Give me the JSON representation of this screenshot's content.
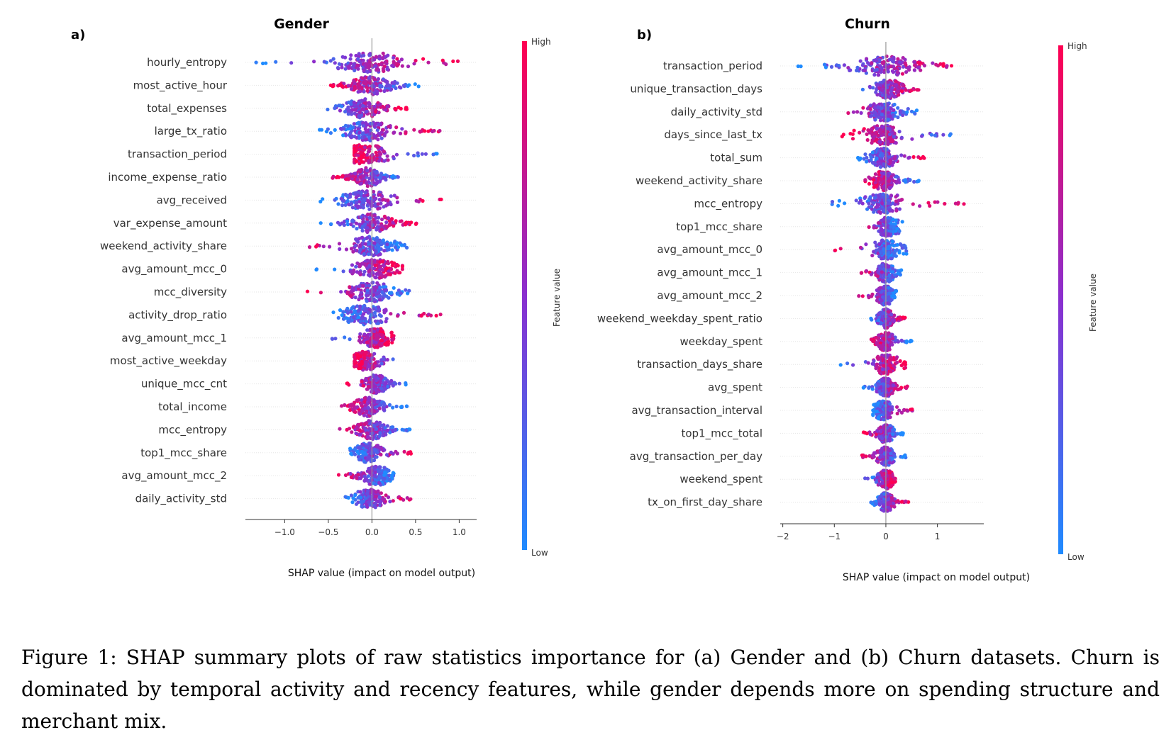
{
  "colors": {
    "low": "#1f8bff",
    "mid": "#8a2fcf",
    "high": "#ff0051",
    "grid": "#e6e6e6",
    "zero_line": "#999999"
  },
  "colorbar": {
    "high_label": "High",
    "low_label": "Low",
    "title": "Feature value"
  },
  "caption": "Figure 1: SHAP summary plots of raw statistics importance for (a) Gender and (b) Churn datasets. Churn is dominated by temporal activity and recency features, while gender depends more on spending structure and merchant mix.",
  "chart_data": [
    {
      "panel": "a)",
      "type": "scatter",
      "title": "Gender",
      "xlabel": "SHAP value (impact on model output)",
      "xlim": [
        -1.45,
        1.2
      ],
      "xticks": [
        -1.0,
        -0.5,
        0.0,
        0.5,
        1.0
      ],
      "xtick_labels": [
        "−1.0",
        "−0.5",
        "0.0",
        "0.5",
        "1.0"
      ],
      "features": [
        {
          "name": "hourly_entropy",
          "min": -1.35,
          "max": 1.1,
          "center": 0.0,
          "spread": 0.45,
          "low_side": "left"
        },
        {
          "name": "most_active_hour",
          "min": -0.5,
          "max": 0.6,
          "center": 0.0,
          "spread": 0.35,
          "low_side": "right"
        },
        {
          "name": "total_expenses",
          "min": -0.65,
          "max": 0.4,
          "center": -0.1,
          "spread": 0.3,
          "low_side": "left"
        },
        {
          "name": "large_tx_ratio",
          "min": -0.6,
          "max": 0.8,
          "center": -0.05,
          "spread": 0.35,
          "low_side": "left"
        },
        {
          "name": "transaction_period",
          "min": -0.2,
          "max": 0.8,
          "center": -0.08,
          "spread": 0.3,
          "low_side": "right"
        },
        {
          "name": "income_expense_ratio",
          "min": -0.45,
          "max": 0.35,
          "center": -0.05,
          "spread": 0.3,
          "low_side": "right"
        },
        {
          "name": "avg_received",
          "min": -0.6,
          "max": 0.8,
          "center": -0.05,
          "spread": 0.35,
          "low_side": "left"
        },
        {
          "name": "var_expense_amount",
          "min": -0.6,
          "max": 0.55,
          "center": 0.0,
          "spread": 0.3,
          "low_side": "left"
        },
        {
          "name": "weekend_activity_share",
          "min": -0.75,
          "max": 0.4,
          "center": 0.0,
          "spread": 0.28,
          "low_side": "right"
        },
        {
          "name": "avg_amount_mcc_0",
          "min": -0.65,
          "max": 0.35,
          "center": 0.05,
          "spread": 0.28,
          "low_side": "left"
        },
        {
          "name": "mcc_diversity",
          "min": -0.75,
          "max": 0.45,
          "center": 0.0,
          "spread": 0.28,
          "low_side": "right"
        },
        {
          "name": "activity_drop_ratio",
          "min": -0.45,
          "max": 0.85,
          "center": -0.08,
          "spread": 0.3,
          "low_side": "left"
        },
        {
          "name": "avg_amount_mcc_1",
          "min": -0.5,
          "max": 0.25,
          "center": 0.05,
          "spread": 0.2,
          "low_side": "left"
        },
        {
          "name": "most_active_weekday",
          "min": -0.2,
          "max": 0.4,
          "center": -0.08,
          "spread": 0.2,
          "low_side": "right"
        },
        {
          "name": "unique_mcc_cnt",
          "min": -0.3,
          "max": 0.4,
          "center": 0.05,
          "spread": 0.2,
          "low_side": "right"
        },
        {
          "name": "total_income",
          "min": -0.35,
          "max": 0.4,
          "center": -0.05,
          "spread": 0.22,
          "low_side": "right"
        },
        {
          "name": "mcc_entropy",
          "min": -0.45,
          "max": 0.45,
          "center": 0.0,
          "spread": 0.22,
          "low_side": "right"
        },
        {
          "name": "top1_mcc_share",
          "min": -0.25,
          "max": 0.45,
          "center": -0.05,
          "spread": 0.2,
          "low_side": "left"
        },
        {
          "name": "avg_amount_mcc_2",
          "min": -0.45,
          "max": 0.25,
          "center": 0.05,
          "spread": 0.2,
          "low_side": "right"
        },
        {
          "name": "daily_activity_std",
          "min": -0.35,
          "max": 0.5,
          "center": -0.03,
          "spread": 0.2,
          "low_side": "left"
        }
      ]
    },
    {
      "panel": "b)",
      "type": "scatter",
      "title": "Churn",
      "xlabel": "SHAP value (impact on model output)",
      "xlim": [
        -2.05,
        1.9
      ],
      "xticks": [
        -2,
        -1,
        0,
        1
      ],
      "xtick_labels": [
        "−2",
        "−1",
        "0",
        "1"
      ],
      "features": [
        {
          "name": "transaction_period",
          "min": -1.9,
          "max": 1.6,
          "center": 0.0,
          "spread": 0.8,
          "low_side": "left"
        },
        {
          "name": "unique_transaction_days",
          "min": -0.75,
          "max": 0.65,
          "center": 0.05,
          "spread": 0.3,
          "low_side": "left"
        },
        {
          "name": "daily_activity_std",
          "min": -1.05,
          "max": 0.6,
          "center": -0.05,
          "spread": 0.3,
          "low_side": "right"
        },
        {
          "name": "days_since_last_tx",
          "min": -0.85,
          "max": 1.4,
          "center": -0.05,
          "spread": 0.3,
          "low_side": "right"
        },
        {
          "name": "total_sum",
          "min": -0.55,
          "max": 0.75,
          "center": -0.05,
          "spread": 0.3,
          "low_side": "left"
        },
        {
          "name": "weekend_activity_share",
          "min": -0.4,
          "max": 0.65,
          "center": -0.05,
          "spread": 0.3,
          "low_side": "right"
        },
        {
          "name": "mcc_entropy",
          "min": -1.15,
          "max": 1.7,
          "center": -0.05,
          "spread": 0.4,
          "low_side": "left"
        },
        {
          "name": "top1_mcc_share",
          "min": -0.7,
          "max": 0.35,
          "center": 0.05,
          "spread": 0.22,
          "low_side": "right"
        },
        {
          "name": "avg_amount_mcc_0",
          "min": -1.15,
          "max": 0.4,
          "center": 0.0,
          "spread": 0.22,
          "low_side": "right"
        },
        {
          "name": "avg_amount_mcc_1",
          "min": -0.55,
          "max": 0.3,
          "center": 0.0,
          "spread": 0.2,
          "low_side": "right"
        },
        {
          "name": "avg_amount_mcc_2",
          "min": -0.55,
          "max": 0.2,
          "center": 0.0,
          "spread": 0.18,
          "low_side": "right"
        },
        {
          "name": "weekend_weekday_spent_ratio",
          "min": -0.35,
          "max": 0.4,
          "center": 0.0,
          "spread": 0.2,
          "low_side": "left"
        },
        {
          "name": "weekday_spent",
          "min": -0.3,
          "max": 0.5,
          "center": 0.0,
          "spread": 0.2,
          "low_side": "right"
        },
        {
          "name": "transaction_days_share",
          "min": -0.95,
          "max": 0.4,
          "center": 0.0,
          "spread": 0.22,
          "low_side": "left"
        },
        {
          "name": "avg_spent",
          "min": -0.45,
          "max": 0.45,
          "center": 0.0,
          "spread": 0.2,
          "low_side": "left"
        },
        {
          "name": "avg_transaction_interval",
          "min": -0.25,
          "max": 0.6,
          "center": -0.05,
          "spread": 0.2,
          "low_side": "left"
        },
        {
          "name": "top1_mcc_total",
          "min": -0.45,
          "max": 0.35,
          "center": 0.0,
          "spread": 0.18,
          "low_side": "right"
        },
        {
          "name": "avg_transaction_per_day",
          "min": -0.5,
          "max": 0.4,
          "center": 0.0,
          "spread": 0.2,
          "low_side": "right"
        },
        {
          "name": "weekend_spent",
          "min": -0.45,
          "max": 0.25,
          "center": 0.0,
          "spread": 0.18,
          "low_side": "left"
        },
        {
          "name": "tx_on_first_day_share",
          "min": -0.3,
          "max": 0.45,
          "center": 0.0,
          "spread": 0.18,
          "low_side": "left"
        }
      ]
    }
  ]
}
